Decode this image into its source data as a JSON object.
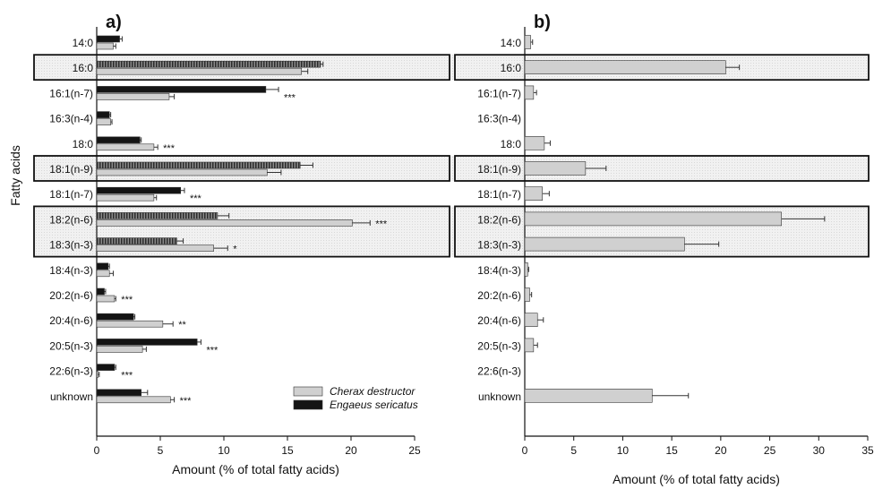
{
  "y_axis_label": "Fatty acids",
  "colors": {
    "cherax": "#d0d0d0",
    "engaeus": "#141414",
    "engaeus_hatched": "#5a5a5a",
    "highlight_bg": "#ececec",
    "frame": "#111111"
  },
  "chart_data": [
    {
      "type": "bar",
      "orientation": "horizontal",
      "panel_label": "a)",
      "xlabel": "Amount (% of total fatty acids)",
      "ylabel": "Fatty acids",
      "xlim": [
        0,
        25
      ],
      "xticks": [
        0,
        5,
        10,
        15,
        20,
        25
      ],
      "categories": [
        "14:0",
        "16:0",
        "16:1(n-7)",
        "16:3(n-4)",
        "18:0",
        "18:1(n-9)",
        "18:1(n-7)",
        "18:2(n-6)",
        "18:3(n-3)",
        "18:4(n-3)",
        "20:2(n-6)",
        "20:4(n-6)",
        "20:5(n-3)",
        "22:6(n-3)",
        "unknown"
      ],
      "highlighted": [
        "16:0",
        "18:1(n-9)",
        "18:2(n-6)",
        "18:3(n-3)"
      ],
      "series": [
        {
          "name": "Engaeus sericatus",
          "values": [
            1.8,
            17.6,
            13.3,
            1.0,
            3.4,
            16.0,
            6.6,
            9.5,
            6.3,
            0.9,
            0.6,
            2.9,
            7.9,
            1.4,
            3.5
          ],
          "errors": [
            0.2,
            0.2,
            1.0,
            0.1,
            0.1,
            1.0,
            0.3,
            0.9,
            0.5,
            0.1,
            0.1,
            0.1,
            0.3,
            0.1,
            0.5
          ]
        },
        {
          "name": "Cherax destructor",
          "values": [
            1.3,
            16.1,
            5.7,
            1.1,
            4.5,
            13.4,
            4.5,
            20.1,
            9.2,
            1.0,
            1.4,
            5.2,
            3.6,
            0.1,
            5.8
          ],
          "errors": [
            0.2,
            0.5,
            0.4,
            0.1,
            0.3,
            1.1,
            0.2,
            1.4,
            1.1,
            0.3,
            0.1,
            0.8,
            0.3,
            0.1,
            0.3
          ]
        }
      ],
      "significance": [
        "",
        "",
        "***",
        "",
        "***",
        "",
        "***",
        "***",
        "*",
        "",
        "***",
        "**",
        "***",
        "***",
        "***"
      ],
      "legend": {
        "position": "bottom-right",
        "entries": [
          "Cherax destructor",
          "Engaeus sericatus"
        ]
      }
    },
    {
      "type": "bar",
      "orientation": "horizontal",
      "panel_label": "b)",
      "xlabel": "Amount (% of total fatty acids)",
      "xlim": [
        0,
        35
      ],
      "xticks": [
        0,
        5,
        10,
        15,
        20,
        25,
        30,
        35
      ],
      "categories": [
        "14:0",
        "16:0",
        "16:1(n-7)",
        "16:3(n-4)",
        "18:0",
        "18:1(n-9)",
        "18:1(n-7)",
        "18:2(n-6)",
        "18:3(n-3)",
        "18:4(n-3)",
        "20:2(n-6)",
        "20:4(n-6)",
        "20:5(n-3)",
        "22:6(n-3)",
        "unknown"
      ],
      "highlighted": [
        "16:0",
        "18:1(n-9)",
        "18:2(n-6)",
        "18:3(n-3)"
      ],
      "series": [
        {
          "name": "",
          "values": [
            0.6,
            20.5,
            0.9,
            0.0,
            2.0,
            6.2,
            1.8,
            26.2,
            16.3,
            0.3,
            0.5,
            1.3,
            0.9,
            0.0,
            13.0
          ],
          "errors": [
            0.2,
            1.4,
            0.3,
            0.0,
            0.6,
            2.1,
            0.7,
            4.4,
            3.5,
            0.1,
            0.2,
            0.6,
            0.4,
            0.0,
            3.7
          ]
        }
      ]
    }
  ]
}
